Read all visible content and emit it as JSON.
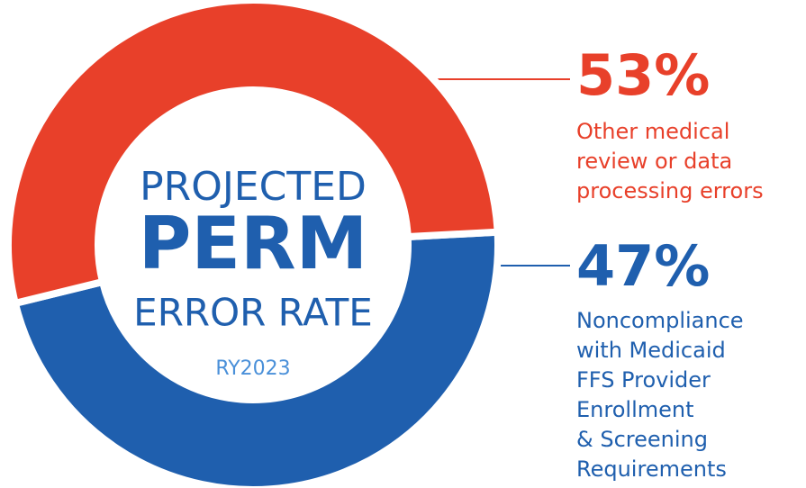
{
  "chart_data": {
    "type": "donut",
    "center_text": [
      "PROJECTED",
      "PERM",
      "ERROR RATE"
    ],
    "subtitle": "RY2023",
    "categories": [
      [
        "Other medical",
        "review or data",
        "processing errors"
      ],
      [
        "Noncompliance",
        "with Medicaid",
        "FFS Provider",
        "Enrollment",
        "& Screening",
        "Requirements"
      ]
    ],
    "values": [
      53,
      47
    ],
    "value_labels": [
      "53%",
      "47%"
    ],
    "colors": [
      "#e8402a",
      "#1f5fae"
    ]
  }
}
